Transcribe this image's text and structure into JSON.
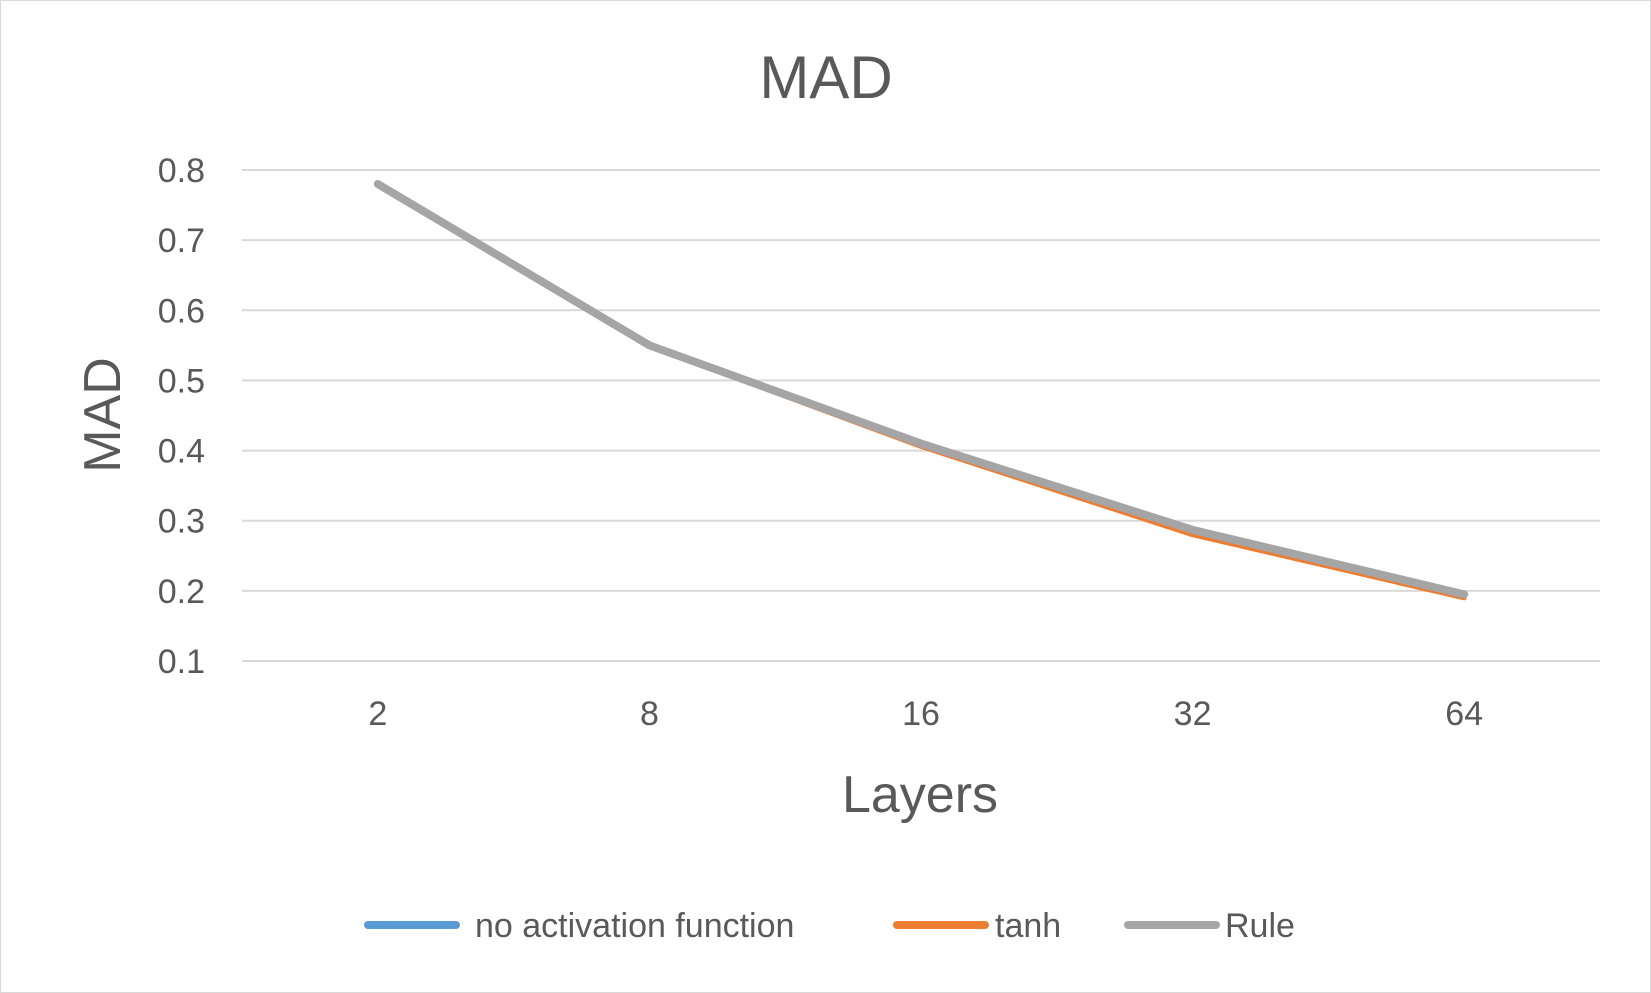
{
  "chart_data": {
    "type": "line",
    "title": "MAD",
    "xlabel": "Layers",
    "ylabel": "MAD",
    "categories": [
      "2",
      "8",
      "16",
      "32",
      "64"
    ],
    "y_ticks": [
      "0.1",
      "0.2",
      "0.3",
      "0.4",
      "0.5",
      "0.6",
      "0.7",
      "0.8"
    ],
    "ylim": [
      0.1,
      0.8
    ],
    "grid": true,
    "legend_position": "bottom",
    "series": [
      {
        "name": "no activation function",
        "color": "#5b9bd5",
        "values": [
          0.78,
          0.55,
          0.41,
          0.285,
          0.193
        ]
      },
      {
        "name": "tanh",
        "color": "#ed7d31",
        "values": [
          0.78,
          0.549,
          0.406,
          0.28,
          0.19
        ]
      },
      {
        "name": "Rule",
        "color": "#a5a5a5",
        "values": [
          0.78,
          0.55,
          0.41,
          0.287,
          0.195
        ]
      }
    ]
  }
}
